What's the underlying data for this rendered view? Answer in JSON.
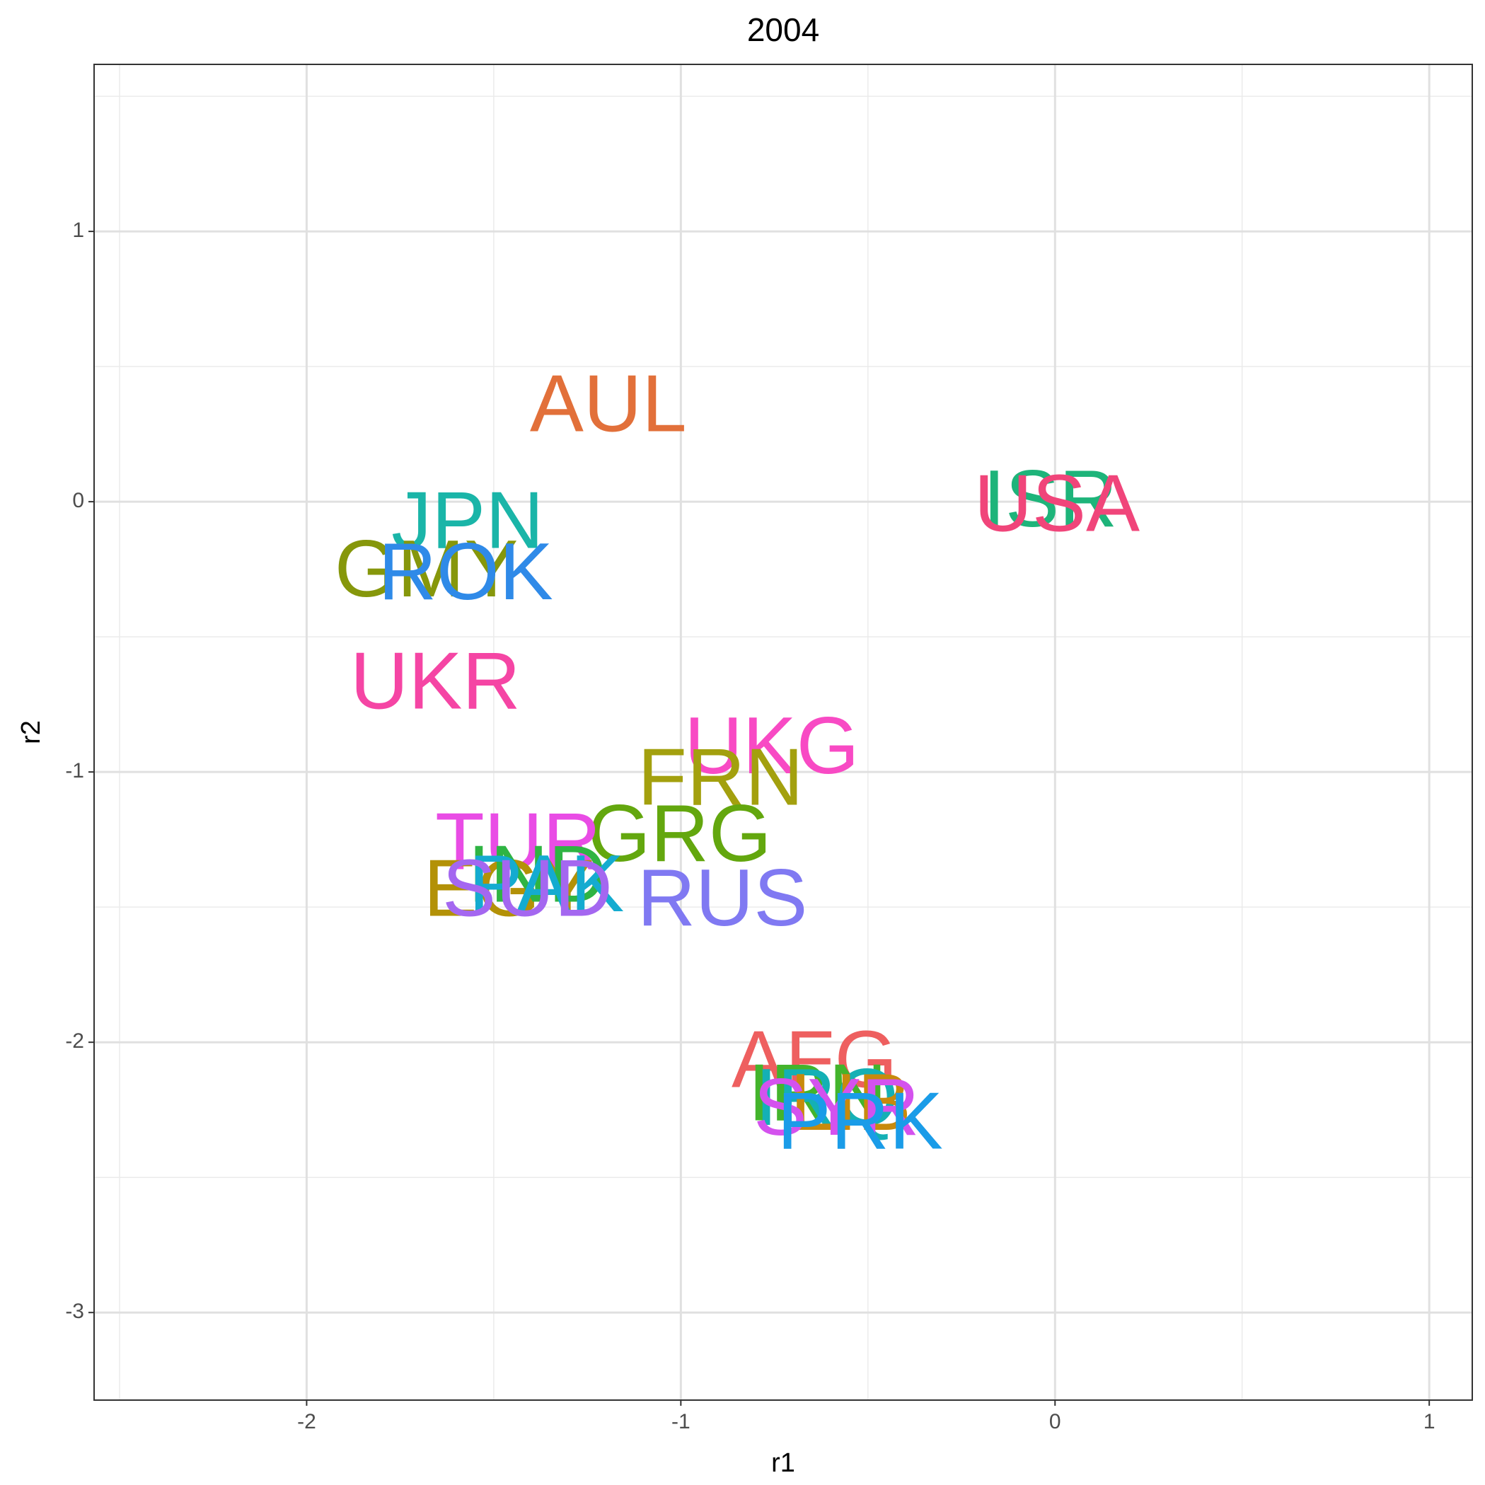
{
  "chart_data": {
    "type": "scatter",
    "title": "2004",
    "x_label": "r1",
    "y_label": "r2",
    "xlim": [
      -2.568,
      1.115
    ],
    "ylim": [
      -3.324,
      1.618
    ],
    "xticks": [
      -2,
      -1,
      0,
      1
    ],
    "yticks": [
      -3,
      -2,
      -1,
      0,
      1
    ],
    "xminor": [
      -2.5,
      -1.5,
      -0.5,
      0.5
    ],
    "yminor": [
      -2.5,
      -1.5,
      -0.5,
      0.5,
      1.5
    ],
    "grid": true,
    "series": [
      {
        "name": "AUL",
        "color": "#e2703a",
        "x": [
          -1.194
        ],
        "values": [
          0.362
        ]
      },
      {
        "name": "ISR",
        "color": "#1eb47a",
        "x": [
          -0.013
        ],
        "values": [
          0.01
        ]
      },
      {
        "name": "USA",
        "color": "#f0457a",
        "x": [
          0.005
        ],
        "values": [
          -0.007
        ]
      },
      {
        "name": "JPN",
        "color": "#1ab5a8",
        "x": [
          -1.57
        ],
        "values": [
          -0.07
        ]
      },
      {
        "name": "GMY",
        "color": "#86970b",
        "x": [
          -1.68
        ],
        "values": [
          -0.25
        ]
      },
      {
        "name": "ROK",
        "color": "#2f8ae8",
        "x": [
          -1.575
        ],
        "values": [
          -0.26
        ]
      },
      {
        "name": "UKR",
        "color": "#f545a4",
        "x": [
          -1.656
        ],
        "values": [
          -0.665
        ]
      },
      {
        "name": "UKG",
        "color": "#f84ac4",
        "x": [
          -0.757
        ],
        "values": [
          -0.904
        ]
      },
      {
        "name": "FRN",
        "color": "#a3a00e",
        "x": [
          -0.894
        ],
        "values": [
          -1.02
        ]
      },
      {
        "name": "GRG",
        "color": "#63a70e",
        "x": [
          -1.003
        ],
        "values": [
          -1.228
        ]
      },
      {
        "name": "TUR",
        "color": "#e94ce5",
        "x": [
          -1.435
        ],
        "values": [
          -1.259
        ]
      },
      {
        "name": "EGY",
        "color": "#b39107",
        "x": [
          -1.46
        ],
        "values": [
          -1.432
        ]
      },
      {
        "name": "IND",
        "color": "#2fb443",
        "x": [
          -1.384
        ],
        "values": [
          -1.379
        ]
      },
      {
        "name": "PAK",
        "color": "#14abd0",
        "x": [
          -1.359
        ],
        "values": [
          -1.414
        ]
      },
      {
        "name": "SUD",
        "color": "#a467f0",
        "x": [
          -1.41
        ],
        "values": [
          -1.432
        ]
      },
      {
        "name": "RUS",
        "color": "#8079f2",
        "x": [
          -0.889
        ],
        "values": [
          -1.467
        ]
      },
      {
        "name": "AFG",
        "color": "#ee5f5f",
        "x": [
          -0.643
        ],
        "values": [
          -2.065
        ]
      },
      {
        "name": "IRN",
        "color": "#43b42c",
        "x": [
          -0.635
        ],
        "values": [
          -2.188
        ]
      },
      {
        "name": "IRQ",
        "color": "#14b0b5",
        "x": [
          -0.61
        ],
        "values": [
          -2.205
        ]
      },
      {
        "name": "LIB",
        "color": "#c88a0c",
        "x": [
          -0.546
        ],
        "values": [
          -2.223
        ]
      },
      {
        "name": "SYR",
        "color": "#d452ee",
        "x": [
          -0.584
        ],
        "values": [
          -2.241
        ]
      },
      {
        "name": "PRK",
        "color": "#1a9ce8",
        "x": [
          -0.521
        ],
        "values": [
          -2.293
        ]
      }
    ]
  }
}
